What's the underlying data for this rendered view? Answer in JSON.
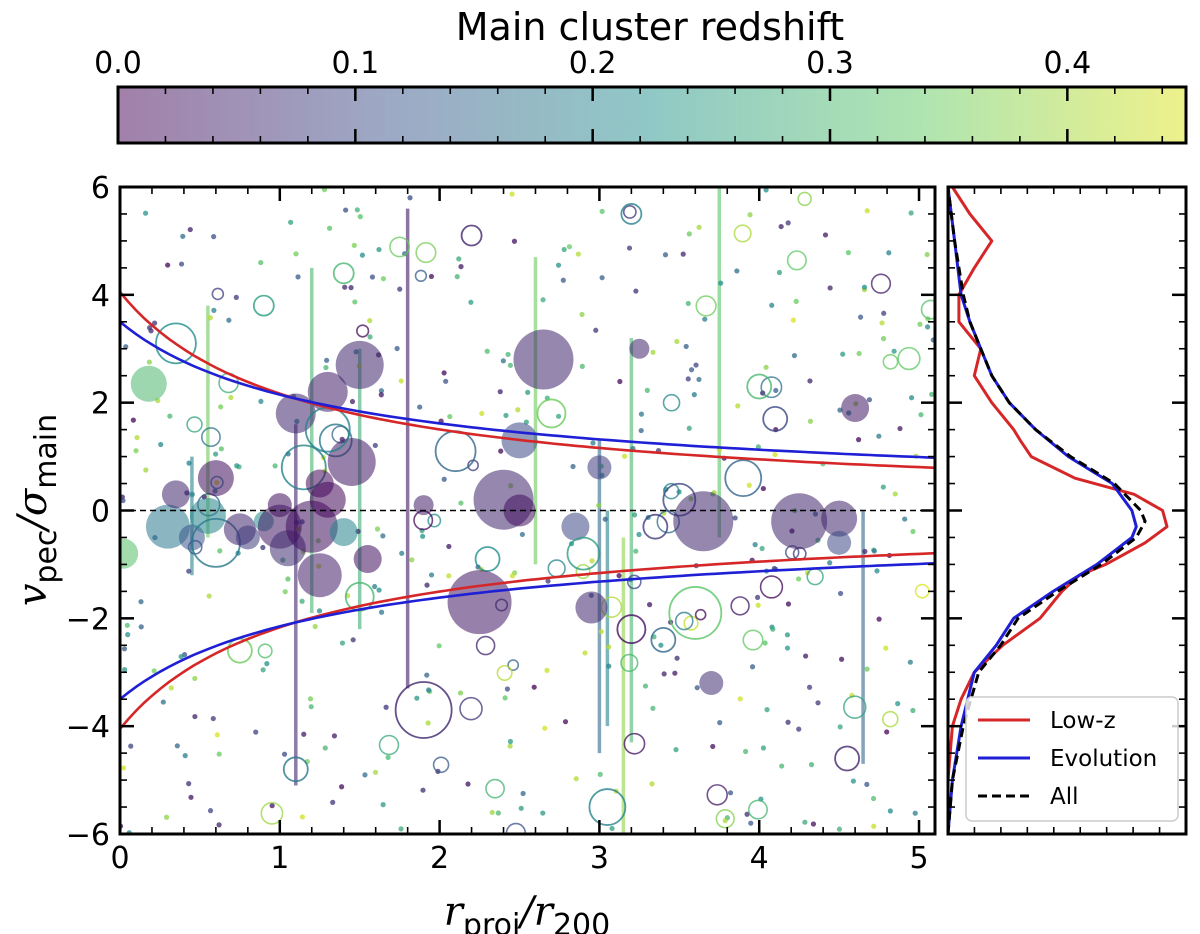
{
  "chart_data": [
    {
      "type": "colorbar",
      "title": "Main cluster redshift",
      "range": [
        0.0,
        0.45
      ],
      "ticks": [
        0.0,
        0.1,
        0.2,
        0.3,
        0.4
      ],
      "tick_labels": [
        "0.0",
        "0.1",
        "0.2",
        "0.3",
        "0.4"
      ],
      "colormap": [
        "#440154",
        "#3b528b",
        "#21918c",
        "#5ec962",
        "#dde318"
      ],
      "alpha": 0.5
    },
    {
      "type": "scatter",
      "xlabel": {
        "main": "r",
        "sub1": "proj",
        "slash": "/r",
        "sub2": "200"
      },
      "ylabel": {
        "main": "v",
        "sub1": "pec",
        "slash": "/σ",
        "sub2": "main"
      },
      "xlim": [
        0,
        5.1
      ],
      "ylim": [
        -6,
        6
      ],
      "xticks": [
        0,
        1,
        2,
        3,
        4,
        5
      ],
      "xtick_labels": [
        "0",
        "1",
        "2",
        "3",
        "4",
        "5"
      ],
      "yticks": [
        -6,
        -4,
        -2,
        0,
        2,
        4,
        6
      ],
      "ytick_labels": [
        "−6",
        "−4",
        "−2",
        "0",
        "2",
        "4",
        "6"
      ],
      "zero_line": {
        "y": 0,
        "style": "dashed",
        "color": "#000000"
      },
      "caustics": [
        {
          "name": "Low-z",
          "color": "#d62728",
          "amplitude": 4.05,
          "exponent": 0.41
        },
        {
          "name": "Evolution",
          "color": "#1f1fd6",
          "amplitude": 3.5,
          "exponent": 0.32
        }
      ],
      "points_note": "marker size proportional to subcluster mass; filled = detected, open = undetected",
      "points": [
        {
          "x": 0.18,
          "y": 2.35,
          "z": 0.3,
          "s": 18,
          "fill": true
        },
        {
          "x": 0.02,
          "y": -0.8,
          "z": 0.32,
          "s": 15,
          "fill": true
        },
        {
          "x": 0.35,
          "y": 3.1,
          "z": 0.22,
          "s": 20,
          "fill": false
        },
        {
          "x": 0.3,
          "y": -0.3,
          "z": 0.18,
          "s": 22,
          "fill": true
        },
        {
          "x": 0.35,
          "y": 0.3,
          "z": 0.05,
          "s": 14,
          "fill": true
        },
        {
          "x": 0.45,
          "y": -0.5,
          "z": 0.12,
          "s": 13,
          "fill": true
        },
        {
          "x": 0.55,
          "y": -0.1,
          "z": 0.2,
          "s": 18,
          "fill": true
        },
        {
          "x": 0.6,
          "y": -0.6,
          "z": 0.18,
          "s": 24,
          "fill": false
        },
        {
          "x": 0.6,
          "y": 0.6,
          "z": 0.02,
          "s": 18,
          "fill": true
        },
        {
          "x": 0.75,
          "y": -0.35,
          "z": 0.05,
          "s": 16,
          "fill": true
        },
        {
          "x": 0.8,
          "y": -0.5,
          "z": 0.08,
          "s": 12,
          "fill": true
        },
        {
          "x": 0.9,
          "y": -0.2,
          "z": 0.22,
          "s": 10,
          "fill": true
        },
        {
          "x": 1.0,
          "y": -0.3,
          "z": 0.03,
          "s": 22,
          "fill": true
        },
        {
          "x": 1.05,
          "y": -0.7,
          "z": 0.06,
          "s": 18,
          "fill": true
        },
        {
          "x": 1.1,
          "y": 1.8,
          "z": 0.05,
          "s": 20,
          "fill": true
        },
        {
          "x": 1.15,
          "y": 0.8,
          "z": 0.2,
          "s": 22,
          "fill": false
        },
        {
          "x": 1.2,
          "y": -0.3,
          "z": 0.02,
          "s": 26,
          "fill": true
        },
        {
          "x": 1.25,
          "y": -1.2,
          "z": 0.04,
          "s": 22,
          "fill": true
        },
        {
          "x": 1.3,
          "y": 0.2,
          "z": 0.01,
          "s": 18,
          "fill": true
        },
        {
          "x": 1.3,
          "y": 2.2,
          "z": 0.04,
          "s": 20,
          "fill": true
        },
        {
          "x": 1.35,
          "y": 1.3,
          "z": 0.18,
          "s": 16,
          "fill": false
        },
        {
          "x": 1.4,
          "y": -0.4,
          "z": 0.2,
          "s": 14,
          "fill": true
        },
        {
          "x": 1.45,
          "y": 0.9,
          "z": 0.03,
          "s": 24,
          "fill": true
        },
        {
          "x": 1.5,
          "y": 2.7,
          "z": 0.05,
          "s": 24,
          "fill": true
        },
        {
          "x": 1.55,
          "y": -0.9,
          "z": 0.02,
          "s": 14,
          "fill": true
        },
        {
          "x": 1.25,
          "y": 0.5,
          "z": 0.01,
          "s": 14,
          "fill": true
        },
        {
          "x": 1.0,
          "y": 0.1,
          "z": 0.02,
          "s": 12,
          "fill": true
        },
        {
          "x": 1.9,
          "y": -3.7,
          "z": 0.05,
          "s": 28,
          "fill": false
        },
        {
          "x": 1.9,
          "y": 0.1,
          "z": 0.04,
          "s": 10,
          "fill": true
        },
        {
          "x": 1.5,
          "y": -1.6,
          "z": 0.3,
          "s": 14,
          "fill": false
        },
        {
          "x": 2.3,
          "y": -0.9,
          "z": 0.22,
          "s": 12,
          "fill": false
        },
        {
          "x": 2.4,
          "y": 0.2,
          "z": 0.05,
          "s": 30,
          "fill": true
        },
        {
          "x": 2.5,
          "y": 0.0,
          "z": 0.02,
          "s": 16,
          "fill": true
        },
        {
          "x": 2.25,
          "y": -1.7,
          "z": 0.03,
          "s": 32,
          "fill": true
        },
        {
          "x": 2.5,
          "y": 1.3,
          "z": 0.1,
          "s": 18,
          "fill": true
        },
        {
          "x": 2.7,
          "y": 1.8,
          "z": 0.35,
          "s": 14,
          "fill": false
        },
        {
          "x": 2.65,
          "y": 2.8,
          "z": 0.05,
          "s": 30,
          "fill": true
        },
        {
          "x": 2.85,
          "y": -0.3,
          "z": 0.1,
          "s": 14,
          "fill": true
        },
        {
          "x": 2.95,
          "y": -1.8,
          "z": 0.05,
          "s": 16,
          "fill": true
        },
        {
          "x": 3.0,
          "y": 0.8,
          "z": 0.08,
          "s": 12,
          "fill": true
        },
        {
          "x": 3.05,
          "y": -5.5,
          "z": 0.2,
          "s": 18,
          "fill": false
        },
        {
          "x": 3.2,
          "y": -2.2,
          "z": 0.02,
          "s": 14,
          "fill": false
        },
        {
          "x": 3.25,
          "y": 3.0,
          "z": 0.05,
          "s": 10,
          "fill": true
        },
        {
          "x": 3.35,
          "y": -0.3,
          "z": 0.08,
          "s": 12,
          "fill": false
        },
        {
          "x": 3.5,
          "y": 0.2,
          "z": 0.1,
          "s": 16,
          "fill": false
        },
        {
          "x": 3.65,
          "y": -0.2,
          "z": 0.05,
          "s": 30,
          "fill": true
        },
        {
          "x": 3.6,
          "y": -1.9,
          "z": 0.33,
          "s": 26,
          "fill": false
        },
        {
          "x": 3.7,
          "y": -3.2,
          "z": 0.06,
          "s": 12,
          "fill": true
        },
        {
          "x": 3.9,
          "y": 0.6,
          "z": 0.15,
          "s": 18,
          "fill": false
        },
        {
          "x": 4.1,
          "y": 1.7,
          "z": 0.1,
          "s": 12,
          "fill": false
        },
        {
          "x": 4.25,
          "y": -0.2,
          "z": 0.05,
          "s": 28,
          "fill": true
        },
        {
          "x": 4.5,
          "y": -0.15,
          "z": 0.05,
          "s": 18,
          "fill": true
        },
        {
          "x": 4.6,
          "y": 1.9,
          "z": 0.03,
          "s": 14,
          "fill": true
        },
        {
          "x": 4.5,
          "y": -0.6,
          "z": 0.1,
          "s": 12,
          "fill": true
        },
        {
          "x": 4.55,
          "y": -4.6,
          "z": 0.05,
          "s": 12,
          "fill": false
        },
        {
          "x": 3.2,
          "y": 5.5,
          "z": 0.2,
          "s": 10,
          "fill": false
        },
        {
          "x": 2.2,
          "y": 5.1,
          "z": 0.05,
          "s": 10,
          "fill": false
        },
        {
          "x": 1.4,
          "y": 4.4,
          "z": 0.3,
          "s": 10,
          "fill": false
        },
        {
          "x": 0.9,
          "y": 3.8,
          "z": 0.25,
          "s": 10,
          "fill": false
        },
        {
          "x": 1.1,
          "y": -4.8,
          "z": 0.18,
          "s": 12,
          "fill": false
        },
        {
          "x": 0.75,
          "y": -2.6,
          "z": 0.35,
          "s": 12,
          "fill": false
        },
        {
          "x": 1.3,
          "y": 1.5,
          "z": 0.2,
          "s": 22,
          "fill": false
        },
        {
          "x": 2.1,
          "y": 1.1,
          "z": 0.15,
          "s": 20,
          "fill": false
        },
        {
          "x": 2.9,
          "y": -0.8,
          "z": 0.25,
          "s": 16,
          "fill": false
        },
        {
          "x": 3.4,
          "y": -2.4,
          "z": 0.15,
          "s": 12,
          "fill": false
        },
        {
          "x": 4.0,
          "y": 2.3,
          "z": 0.3,
          "s": 12,
          "fill": false
        }
      ],
      "error_bars": [
        {
          "x": 0.45,
          "y0": -1.2,
          "y1": 1.0,
          "z": 0.2
        },
        {
          "x": 0.55,
          "y0": -0.5,
          "y1": 3.8,
          "z": 0.35
        },
        {
          "x": 1.1,
          "y0": -5.1,
          "y1": 1.6,
          "z": 0.05
        },
        {
          "x": 1.2,
          "y0": -1.9,
          "y1": 4.5,
          "z": 0.3
        },
        {
          "x": 1.5,
          "y0": -2.2,
          "y1": 3.0,
          "z": 0.28
        },
        {
          "x": 1.8,
          "y0": -3.3,
          "y1": 5.6,
          "z": 0.03
        },
        {
          "x": 2.6,
          "y0": -1.0,
          "y1": 4.7,
          "z": 0.35
        },
        {
          "x": 3.0,
          "y0": -4.5,
          "y1": 1.3,
          "z": 0.15
        },
        {
          "x": 3.05,
          "y0": -4.0,
          "y1": 0.0,
          "z": 0.2
        },
        {
          "x": 3.15,
          "y0": -6.0,
          "y1": -0.5,
          "z": 0.38
        },
        {
          "x": 3.2,
          "y0": -4.3,
          "y1": 3.2,
          "z": 0.3
        },
        {
          "x": 3.75,
          "y0": -0.5,
          "y1": 6.0,
          "z": 0.33
        },
        {
          "x": 4.65,
          "y0": -4.7,
          "y1": 0.0,
          "z": 0.15
        }
      ]
    },
    {
      "type": "line",
      "orientation": "horizontal-density",
      "ylim": [
        -6,
        6
      ],
      "legend_position": "lower-right",
      "series": [
        {
          "name": "Low-z",
          "color": "#d62728",
          "style": "solid",
          "y": [
            -6,
            -5,
            -4,
            -3.5,
            -3,
            -2.5,
            -2,
            -1.5,
            -1.2,
            -1.0,
            -0.6,
            -0.3,
            0.0,
            0.3,
            0.6,
            1.0,
            1.3,
            1.5,
            2.0,
            2.5,
            3.0,
            3.5,
            4.0,
            4.5,
            5.0,
            5.5,
            6.0
          ],
          "density": [
            0.0,
            0.0,
            0.02,
            0.06,
            0.12,
            0.25,
            0.42,
            0.52,
            0.6,
            0.72,
            0.9,
            1.0,
            0.98,
            0.85,
            0.58,
            0.38,
            0.33,
            0.3,
            0.2,
            0.12,
            0.15,
            0.05,
            0.05,
            0.12,
            0.2,
            0.1,
            0.02
          ]
        },
        {
          "name": "Evolution",
          "color": "#1f1fd6",
          "style": "solid",
          "y": [
            -6,
            -5,
            -4,
            -3,
            -2.5,
            -2,
            -1.5,
            -1,
            -0.5,
            -0.3,
            0.0,
            0.5,
            1.0,
            1.5,
            2.0,
            2.5,
            3.0,
            3.5,
            4.0,
            5.0,
            6.0
          ],
          "density": [
            0.0,
            0.02,
            0.06,
            0.12,
            0.22,
            0.3,
            0.48,
            0.68,
            0.84,
            0.86,
            0.84,
            0.75,
            0.55,
            0.4,
            0.28,
            0.2,
            0.15,
            0.1,
            0.06,
            0.03,
            0.0
          ]
        },
        {
          "name": "All",
          "color": "#000000",
          "style": "dashed",
          "y": [
            -6,
            -5,
            -4,
            -3,
            -2.5,
            -2,
            -1.5,
            -1,
            -0.5,
            -0.2,
            0.0,
            0.5,
            1.0,
            1.5,
            2.0,
            2.5,
            3.0,
            3.5,
            4.0,
            5.0,
            6.0
          ],
          "density": [
            0.0,
            0.02,
            0.07,
            0.14,
            0.24,
            0.32,
            0.5,
            0.7,
            0.86,
            0.9,
            0.88,
            0.76,
            0.56,
            0.4,
            0.28,
            0.2,
            0.15,
            0.1,
            0.07,
            0.03,
            0.0
          ]
        }
      ]
    }
  ]
}
